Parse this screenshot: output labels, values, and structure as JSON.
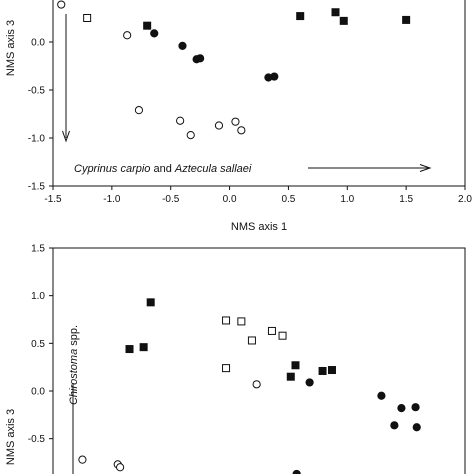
{
  "chart_data": [
    {
      "type": "scatter",
      "xlabel": "NMS axis 1",
      "ylabel": "NMS axis 3",
      "xlim": [
        -1.5,
        2.0
      ],
      "ylim": [
        -1.5,
        0.3
      ],
      "xticks": [
        "-1.5",
        "-1.0",
        "-0.5",
        "0.0",
        "0.5",
        "1.0",
        "1.5",
        "2.0"
      ],
      "yticks": [
        "-1.5",
        "-1.0",
        "-0.5",
        "0.0"
      ],
      "annotation": {
        "part1": "Cyprinus carpio",
        "part2": " and ",
        "part3": "Aztecula sallaei"
      },
      "series": [
        {
          "marker": "open-square",
          "points": [
            [
              -1.21,
              0.25
            ]
          ]
        },
        {
          "marker": "filled-square",
          "points": [
            [
              -0.7,
              0.17
            ],
            [
              0.6,
              0.27
            ],
            [
              0.9,
              0.31
            ],
            [
              0.97,
              0.22
            ],
            [
              1.5,
              0.23
            ]
          ]
        },
        {
          "marker": "open-circle",
          "points": [
            [
              -1.43,
              0.39
            ],
            [
              -0.87,
              0.07
            ],
            [
              -0.77,
              -0.71
            ],
            [
              -0.42,
              -0.82
            ],
            [
              -0.33,
              -0.97
            ],
            [
              -0.09,
              -0.87
            ],
            [
              0.05,
              -0.83
            ],
            [
              0.1,
              -0.92
            ]
          ]
        },
        {
          "marker": "filled-circle",
          "points": [
            [
              -0.64,
              0.09
            ],
            [
              -0.4,
              -0.04
            ],
            [
              -0.28,
              -0.18
            ],
            [
              -0.25,
              -0.17
            ],
            [
              0.33,
              -0.37
            ],
            [
              0.38,
              -0.36
            ]
          ]
        }
      ]
    },
    {
      "type": "scatter",
      "xlabel": "",
      "ylabel": "NMS axis 3",
      "xlim": [
        -1.5,
        2.0
      ],
      "ylim": [
        -0.85,
        1.5
      ],
      "yticks": [
        "1.5",
        "1.0",
        "0.5",
        "0.0",
        "-0.5"
      ],
      "annotation": {
        "part1": "Chirostoma",
        "part2": " spp."
      },
      "series": [
        {
          "marker": "open-square",
          "points": [
            [
              -0.03,
              0.74
            ],
            [
              0.1,
              0.73
            ],
            [
              0.36,
              0.63
            ],
            [
              0.45,
              0.58
            ],
            [
              0.19,
              0.53
            ],
            [
              -0.03,
              0.24
            ]
          ]
        },
        {
          "marker": "filled-square",
          "points": [
            [
              -0.67,
              0.93
            ],
            [
              -0.85,
              0.44
            ],
            [
              -0.73,
              0.46
            ],
            [
              0.56,
              0.27
            ],
            [
              0.52,
              0.15
            ],
            [
              0.79,
              0.21
            ],
            [
              0.87,
              0.22
            ]
          ]
        },
        {
          "marker": "open-circle",
          "points": [
            [
              0.23,
              0.07
            ],
            [
              -1.25,
              -0.72
            ],
            [
              -0.95,
              -0.77
            ],
            [
              -0.93,
              -0.8
            ]
          ]
        },
        {
          "marker": "filled-circle",
          "points": [
            [
              0.68,
              0.09
            ],
            [
              1.29,
              -0.05
            ],
            [
              1.4,
              -0.36
            ],
            [
              1.46,
              -0.18
            ],
            [
              1.58,
              -0.17
            ],
            [
              1.59,
              -0.38
            ],
            [
              0.57,
              -0.87
            ]
          ]
        }
      ]
    }
  ]
}
